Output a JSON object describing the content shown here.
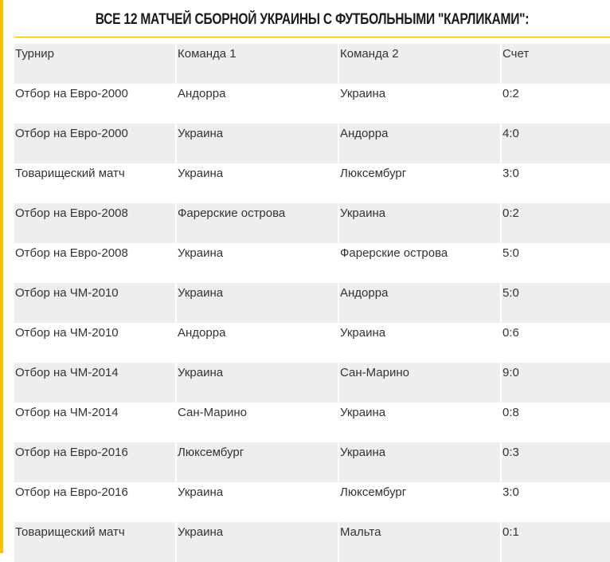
{
  "accent_color": "#f5c400",
  "title": "ВСЕ 12 МАТЧЕЙ СБОРНОЙ УКРАИНЫ С ФУТБОЛЬНЫМИ \"КАРЛИКАМИ\":",
  "table": {
    "headers": [
      "Турнир",
      "Команда 1",
      "Команда 2",
      "Счет"
    ],
    "rows": [
      [
        "Отбор на Евро-2000",
        "Андорра",
        "Украина",
        "0:2"
      ],
      [
        "Отбор на Евро-2000",
        "Украина",
        "Андорра",
        "4:0"
      ],
      [
        "Товарищеский матч",
        "Украина",
        "Люксембург",
        "3:0"
      ],
      [
        "Отбор на Евро-2008",
        "Фарерские острова",
        "Украина",
        "0:2"
      ],
      [
        "Отбор на Евро-2008",
        "Украина",
        "Фарерские острова",
        "5:0"
      ],
      [
        "Отбор на ЧМ-2010",
        "Украина",
        "Андорра",
        "5:0"
      ],
      [
        "Отбор на ЧМ-2010",
        "Андорра",
        "Украина",
        "0:6"
      ],
      [
        "Отбор на ЧМ-2014",
        "Украина",
        "Сан-Марино",
        "9:0"
      ],
      [
        "Отбор на ЧМ-2014",
        "Сан-Марино",
        "Украина",
        "0:8"
      ],
      [
        "Отбор на Евро-2016",
        "Люксембург",
        "Украина",
        "0:3"
      ],
      [
        "Отбор на Евро-2016",
        "Украина",
        "Люксембург",
        "3:0"
      ],
      [
        "Товарищеский матч",
        "Украина",
        "Мальта",
        "0:1"
      ]
    ]
  }
}
